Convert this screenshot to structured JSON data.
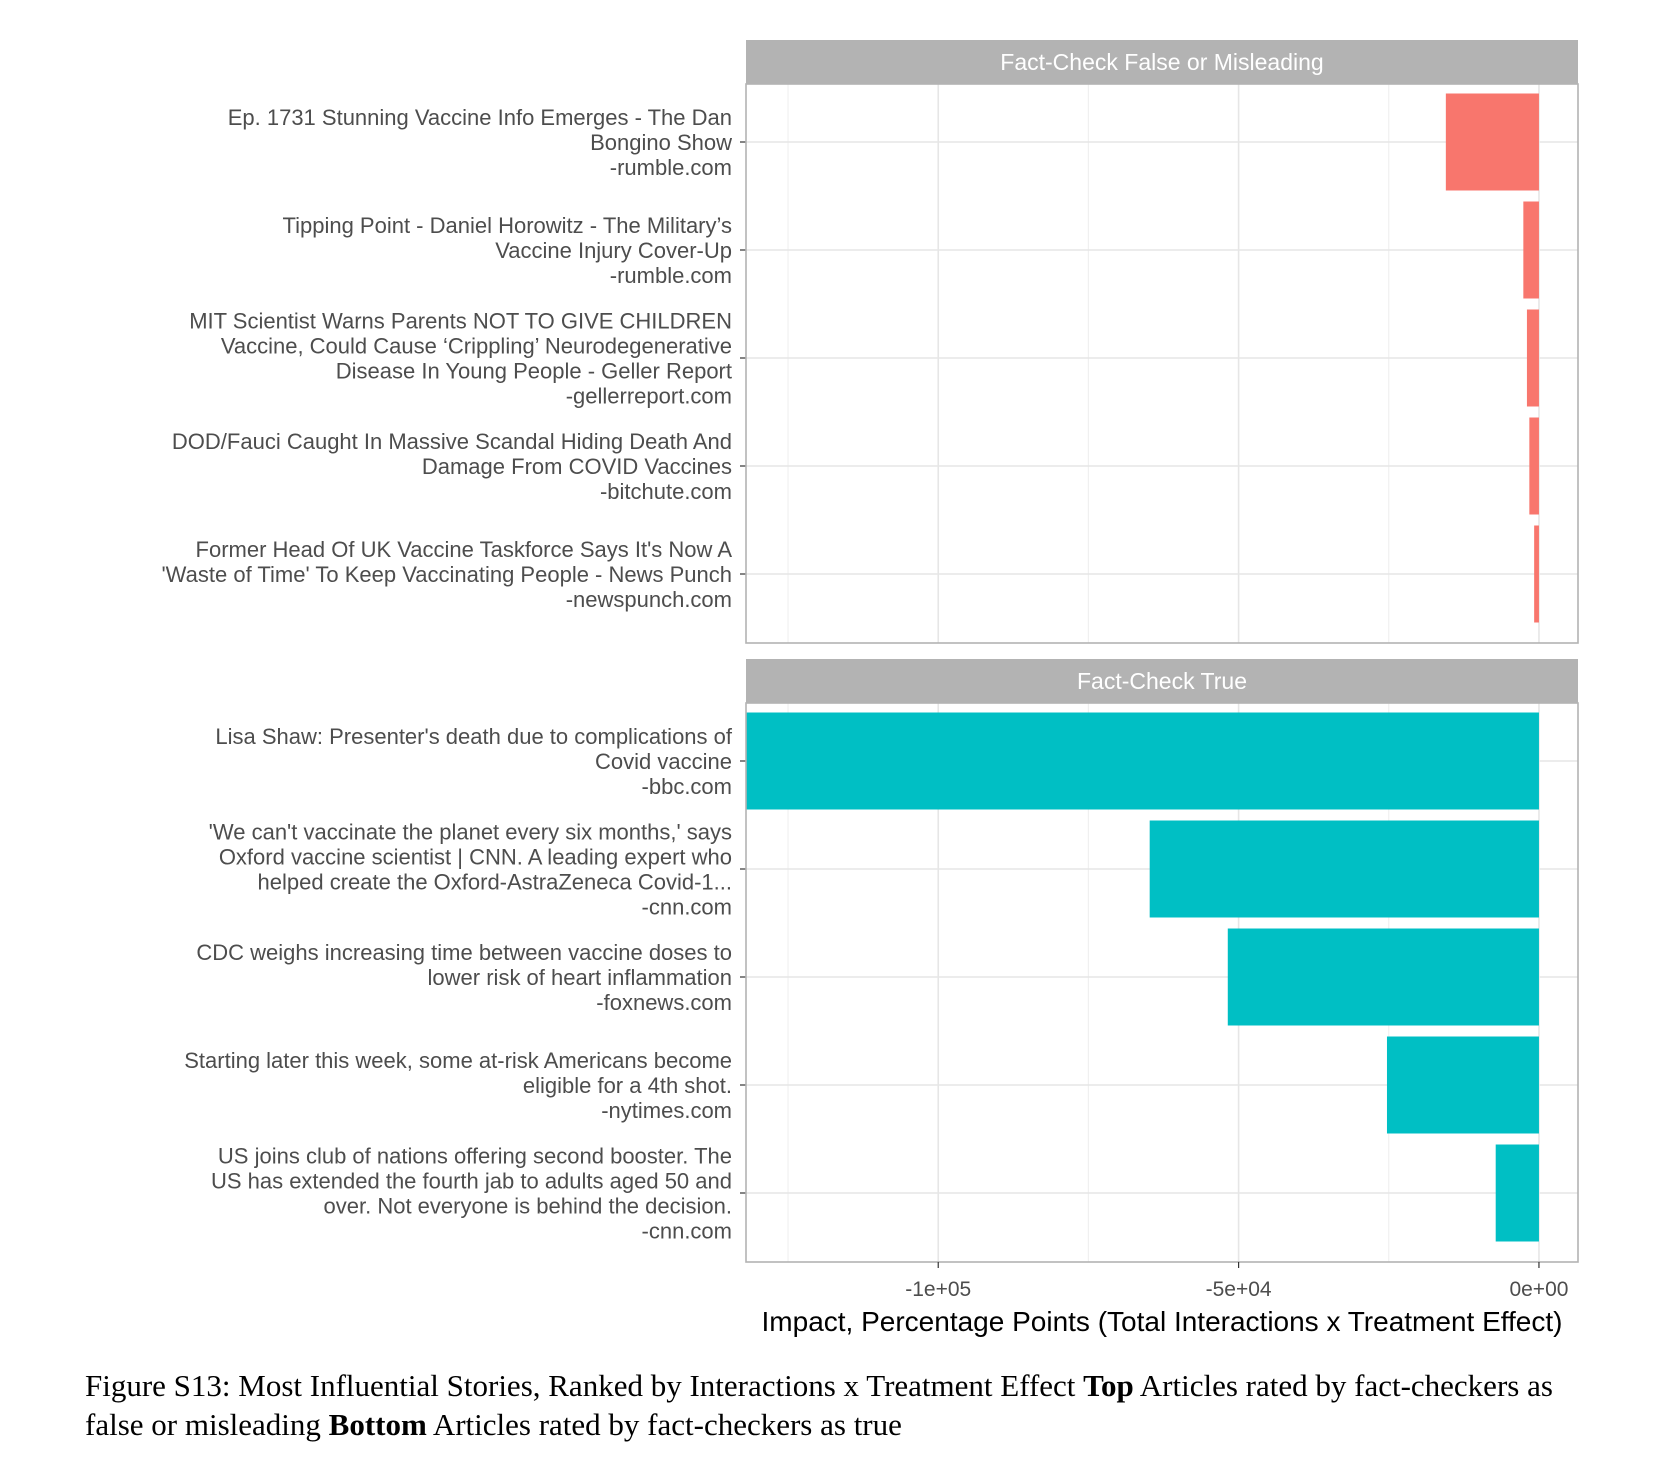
{
  "chart_data": {
    "type": "bar",
    "orientation": "horizontal",
    "xlabel": "Impact, Percentage Points (Total Interactions x Treatment Effect)",
    "x_ticks": [
      {
        "value": -100000,
        "label": "-1e+05"
      },
      {
        "value": -50000,
        "label": "-5e+04"
      },
      {
        "value": 0,
        "label": "0e+00"
      }
    ],
    "xlim": [
      -132000,
      6500
    ],
    "grid": true,
    "panels": [
      {
        "strip": "Fact-Check False or Misleading",
        "color": "#F8766D",
        "bars": [
          {
            "label": [
              "Ep. 1731 Stunning Vaccine Info Emerges - The Dan",
              "Bongino Show",
              "-rumble.com"
            ],
            "value": -15500
          },
          {
            "label": [
              "Tipping Point - Daniel Horowitz - The Military’s",
              "Vaccine Injury Cover-Up",
              "-rumble.com"
            ],
            "value": -2600
          },
          {
            "label": [
              "MIT Scientist Warns Parents NOT TO GIVE CHILDREN",
              "Vaccine, Could Cause ‘Crippling’ Neurodegenerative",
              "Disease In Young People - Geller Report",
              "-gellerreport.com"
            ],
            "value": -2000
          },
          {
            "label": [
              "DOD/Fauci Caught In Massive Scandal Hiding Death And",
              "Damage From COVID Vaccines",
              "-bitchute.com"
            ],
            "value": -1600
          },
          {
            "label": [
              "Former Head Of UK Vaccine Taskforce Says It's Now A",
              "'Waste of Time' To Keep Vaccinating People - News Punch",
              "-newspunch.com"
            ],
            "value": -800
          }
        ]
      },
      {
        "strip": "Fact-Check True",
        "color": "#00BFC4",
        "bars": [
          {
            "label": [
              "Lisa Shaw: Presenter's death due to complications of",
              "Covid vaccine",
              "-bbc.com"
            ],
            "value": -132000
          },
          {
            "label": [
              "'We can't vaccinate the planet every six months,' says",
              "Oxford vaccine scientist | CNN. A leading expert who",
              "helped create the Oxford-AstraZeneca Covid-1...",
              "-cnn.com"
            ],
            "value": -64800
          },
          {
            "label": [
              "CDC weighs increasing time between vaccine doses to",
              "lower risk of heart inflammation",
              "-foxnews.com"
            ],
            "value": -51800
          },
          {
            "label": [
              "Starting later this week, some at-risk Americans become",
              "eligible for a 4th shot.",
              "-nytimes.com"
            ],
            "value": -25300
          },
          {
            "label": [
              "US joins club of nations offering second booster. The",
              "US has extended the fourth jab to adults aged 50 and",
              "over. Not everyone is behind the decision.",
              "-cnn.com"
            ],
            "value": -7200
          }
        ]
      }
    ]
  },
  "caption": {
    "prefix": "Figure S13: Most Influential Stories, Ranked by Interactions x Treatment Effect ",
    "top_bold": "Top",
    "top_text": " Articles rated by fact-checkers as false or misleading ",
    "bottom_bold": "Bottom",
    "bottom_text": " Articles rated by fact-checkers as true"
  }
}
